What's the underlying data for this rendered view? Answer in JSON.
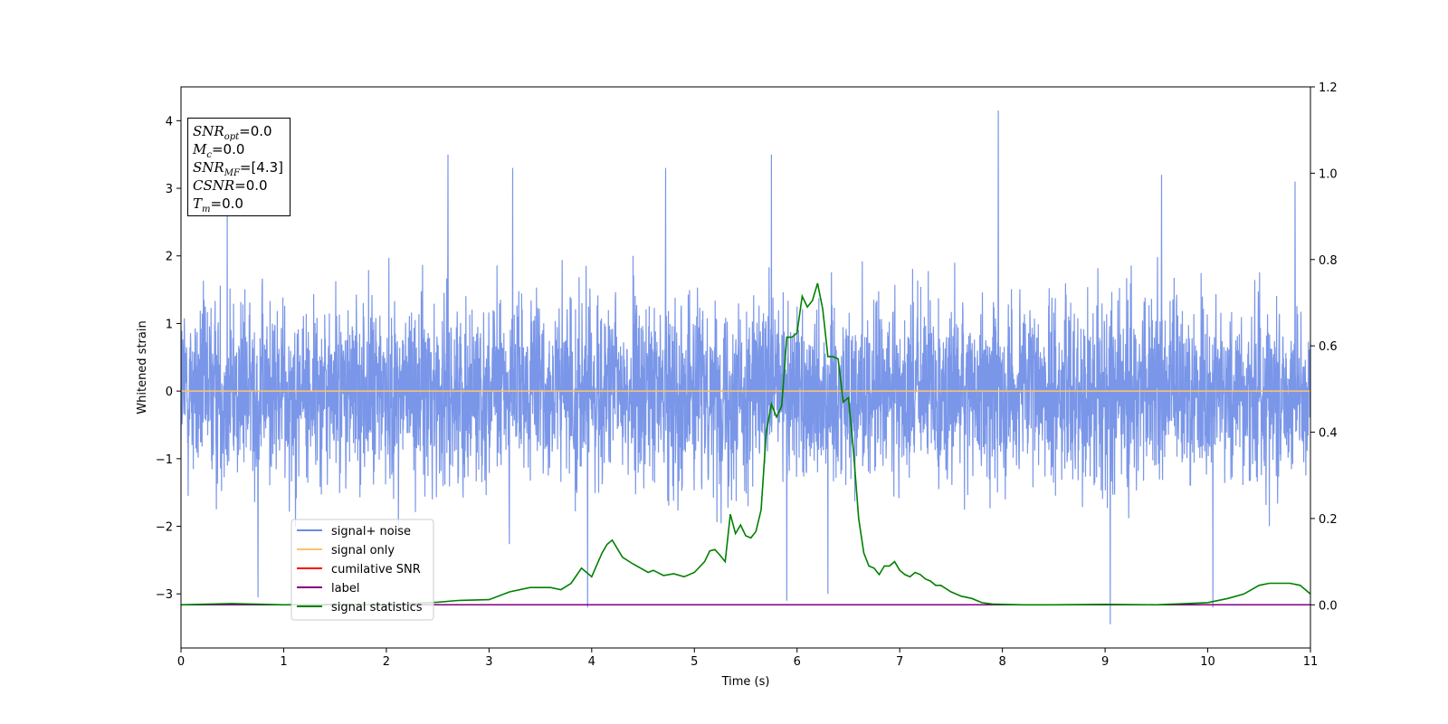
{
  "chart_data": {
    "type": "line",
    "xlabel": "Time (s)",
    "ylabel": "Whitened strain",
    "xlim": [
      0,
      11
    ],
    "ylim": [
      -3.8,
      4.5
    ],
    "y2lim": [
      -0.1,
      1.2
    ],
    "x_ticks": [
      "0",
      "1",
      "2",
      "3",
      "4",
      "5",
      "6",
      "7",
      "8",
      "9",
      "10",
      "11"
    ],
    "y_ticks": [
      "4",
      "3",
      "2",
      "1",
      "0",
      "−1",
      "−2",
      "−3"
    ],
    "y_tick_values": [
      4,
      3,
      2,
      1,
      0,
      -1,
      -2,
      -3
    ],
    "y2_ticks": [
      "1.2",
      "1.0",
      "0.8",
      "0.6",
      "0.4",
      "0.2",
      "0.0"
    ],
    "y2_tick_values": [
      1.2,
      1.0,
      0.8,
      0.6,
      0.4,
      0.2,
      0.0
    ],
    "legend_position": "lower-left",
    "legend": [
      {
        "label": "signal+ noise",
        "color": "#6b8be6"
      },
      {
        "label": "signal only",
        "color": "#ffc36b"
      },
      {
        "label": "cumilative SNR",
        "color": "#ff0000"
      },
      {
        "label": "label",
        "color": "#800080"
      },
      {
        "label": "signal statistics",
        "color": "#008000"
      }
    ],
    "series": [
      {
        "name": "signal+ noise",
        "axis": "left",
        "color": "#6b8be6",
        "typical_range": [
          -2.0,
          2.0
        ],
        "peaks": [
          {
            "x": 0.45,
            "y": 2.7
          },
          {
            "x": 2.6,
            "y": 3.5
          },
          {
            "x": 3.23,
            "y": 3.3
          },
          {
            "x": 4.72,
            "y": 3.3
          },
          {
            "x": 5.75,
            "y": 3.5
          },
          {
            "x": 7.96,
            "y": 4.15
          },
          {
            "x": 9.55,
            "y": 3.2
          },
          {
            "x": 10.85,
            "y": 3.1
          }
        ],
        "troughs": [
          {
            "x": 0.75,
            "y": -3.05
          },
          {
            "x": 3.96,
            "y": -3.2
          },
          {
            "x": 5.9,
            "y": -3.1
          },
          {
            "x": 6.3,
            "y": -3.0
          },
          {
            "x": 9.05,
            "y": -3.45
          },
          {
            "x": 10.05,
            "y": -3.2
          }
        ]
      },
      {
        "name": "signal only",
        "axis": "left",
        "color": "#ffc36b",
        "x": [
          0,
          11
        ],
        "y": [
          0,
          0
        ]
      },
      {
        "name": "label",
        "axis": "right",
        "color": "#800080",
        "x": [
          0,
          11
        ],
        "y": [
          0,
          0
        ]
      },
      {
        "name": "signal statistics",
        "axis": "right",
        "color": "#008000",
        "x": [
          0,
          0.5,
          1.0,
          1.5,
          2.0,
          2.5,
          2.7,
          3.0,
          3.2,
          3.4,
          3.6,
          3.7,
          3.8,
          3.9,
          4.0,
          4.1,
          4.15,
          4.2,
          4.3,
          4.4,
          4.55,
          4.6,
          4.7,
          4.8,
          4.9,
          5.0,
          5.1,
          5.15,
          5.2,
          5.25,
          5.3,
          5.35,
          5.4,
          5.45,
          5.5,
          5.55,
          5.6,
          5.65,
          5.7,
          5.75,
          5.8,
          5.85,
          5.9,
          5.95,
          6.0,
          6.05,
          6.1,
          6.15,
          6.2,
          6.25,
          6.3,
          6.35,
          6.4,
          6.45,
          6.5,
          6.55,
          6.6,
          6.65,
          6.7,
          6.75,
          6.8,
          6.85,
          6.9,
          6.95,
          7.0,
          7.05,
          7.1,
          7.15,
          7.2,
          7.25,
          7.3,
          7.35,
          7.4,
          7.5,
          7.6,
          7.7,
          7.8,
          7.9,
          8.0,
          8.2,
          8.5,
          9.0,
          9.5,
          10.0,
          10.2,
          10.35,
          10.5,
          10.6,
          10.7,
          10.8,
          10.9,
          11.0
        ],
        "y": [
          0.0,
          0.003,
          0.0,
          0.001,
          0.0,
          0.006,
          0.01,
          0.012,
          0.03,
          0.04,
          0.04,
          0.035,
          0.05,
          0.085,
          0.065,
          0.12,
          0.14,
          0.15,
          0.11,
          0.095,
          0.075,
          0.08,
          0.068,
          0.072,
          0.065,
          0.075,
          0.1,
          0.125,
          0.128,
          0.115,
          0.1,
          0.21,
          0.165,
          0.185,
          0.16,
          0.155,
          0.17,
          0.22,
          0.4,
          0.465,
          0.435,
          0.46,
          0.62,
          0.62,
          0.63,
          0.715,
          0.69,
          0.705,
          0.745,
          0.685,
          0.575,
          0.575,
          0.57,
          0.47,
          0.48,
          0.355,
          0.2,
          0.12,
          0.09,
          0.085,
          0.07,
          0.09,
          0.09,
          0.1,
          0.08,
          0.07,
          0.065,
          0.075,
          0.07,
          0.06,
          0.055,
          0.045,
          0.045,
          0.03,
          0.02,
          0.015,
          0.005,
          0.002,
          0.001,
          0.0,
          0.0,
          0.001,
          0.0,
          0.005,
          0.015,
          0.025,
          0.045,
          0.05,
          0.05,
          0.05,
          0.045,
          0.025
        ]
      }
    ]
  },
  "infobox": {
    "snr_opt": {
      "sym": "SNR",
      "sub": "opt",
      "value": "=0.0"
    },
    "mc": {
      "sym": "M",
      "sub": "c",
      "value": "=0.0"
    },
    "snr_mf": {
      "sym": "SNR",
      "sub": "MF",
      "value": "=[4.3]"
    },
    "csnr": {
      "sym": "CSNR",
      "value": "=0.0"
    },
    "tm": {
      "sym": "T",
      "sub": "m",
      "value": "=0.0"
    }
  }
}
